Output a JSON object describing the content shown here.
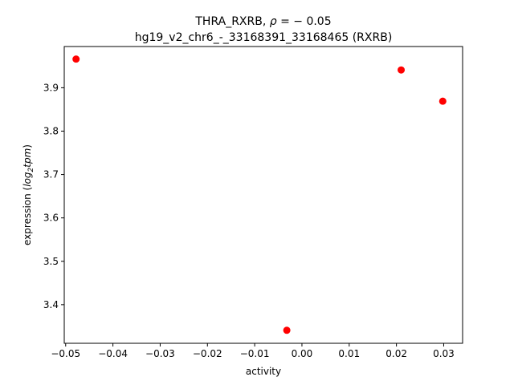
{
  "chart_data": {
    "type": "scatter",
    "title_line1_prefix": "THRA_RXRB, ",
    "title_rho_symbol": "ρ",
    "title_rho_value": " = − 0.05",
    "title_line2": "hg19_v2_chr6_-_33168391_33168465 (RXRB)",
    "xlabel": "activity",
    "ylabel_prefix": "expression (",
    "ylabel_log": "log",
    "ylabel_sub": "2",
    "ylabel_tpm": "tpm",
    "ylabel_suffix": ")",
    "xlim": [
      -0.0503,
      0.034
    ],
    "ylim": [
      3.311,
      3.995
    ],
    "xticks": [
      -0.05,
      -0.04,
      -0.03,
      -0.02,
      -0.01,
      0.0,
      0.01,
      0.02,
      0.03
    ],
    "xtick_labels": [
      "−0.05",
      "−0.04",
      "−0.03",
      "−0.02",
      "−0.01",
      "0.00",
      "0.01",
      "0.02",
      "0.03"
    ],
    "yticks": [
      3.4,
      3.5,
      3.6,
      3.7,
      3.8,
      3.9
    ],
    "ytick_labels": [
      "3.4",
      "3.5",
      "3.6",
      "3.7",
      "3.8",
      "3.9"
    ],
    "points": [
      {
        "x": -0.0478,
        "y": 3.966
      },
      {
        "x": -0.0032,
        "y": 3.341
      },
      {
        "x": 0.021,
        "y": 3.941
      },
      {
        "x": 0.0298,
        "y": 3.869
      }
    ],
    "marker_color": "#ff0000",
    "grid": false
  }
}
